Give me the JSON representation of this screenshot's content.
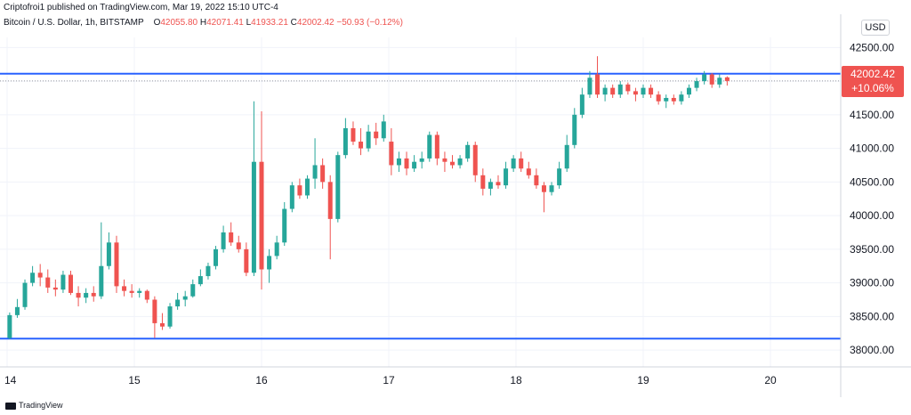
{
  "header": {
    "publish_text": "Criptofroi1 published on TradingView.com, Mar 19, 2022 15:10 UTC-4",
    "symbol": "Bitcoin / U.S. Dollar, 1h, BITSTAMP",
    "ohlc": {
      "o_label": "O",
      "o": "42055.80",
      "h_label": "H",
      "h": "42071.41",
      "l_label": "L",
      "l": "41933.21",
      "c_label": "C",
      "c": "42002.42",
      "change": "−50.93 (−0.12%)"
    }
  },
  "currency": "USD",
  "price_tag": {
    "price": "42002.42",
    "change_pct": "+10.06%"
  },
  "footer": {
    "logo_text": "TradingView"
  },
  "colors": {
    "up": "#26a69a",
    "down": "#ef5350",
    "level_line": "#2962ff",
    "grid": "#f0f3fa",
    "axis_text": "#131722"
  },
  "chart_data": {
    "type": "candlestick",
    "title": "Bitcoin / U.S. Dollar, 1h, BITSTAMP",
    "x_ticks": [
      "14",
      "15",
      "16",
      "17",
      "18",
      "19",
      "20"
    ],
    "y_ticks": [
      "38000.00",
      "38500.00",
      "39000.00",
      "39500.00",
      "40000.00",
      "40500.00",
      "41000.00",
      "41500.00",
      "42000.00",
      "42500.00"
    ],
    "y_values": [
      38000,
      38500,
      39000,
      39500,
      40000,
      40500,
      41000,
      41500,
      42000,
      42500
    ],
    "ylim": [
      37750,
      42650
    ],
    "xlim": [
      14.0,
      20.55
    ],
    "horizontal_levels": [
      42110,
      38170
    ],
    "last_price": 42002.42,
    "candles": [
      {
        "x": 14.02,
        "o": 38180,
        "h": 38560,
        "l": 38160,
        "c": 38520
      },
      {
        "x": 14.08,
        "o": 38520,
        "h": 38760,
        "l": 38480,
        "c": 38640
      },
      {
        "x": 14.14,
        "o": 38640,
        "h": 39050,
        "l": 38600,
        "c": 39000
      },
      {
        "x": 14.2,
        "o": 39000,
        "h": 39250,
        "l": 38950,
        "c": 39150
      },
      {
        "x": 14.26,
        "o": 39150,
        "h": 39280,
        "l": 38950,
        "c": 39080
      },
      {
        "x": 14.32,
        "o": 39080,
        "h": 39200,
        "l": 38850,
        "c": 38930
      },
      {
        "x": 14.38,
        "o": 38930,
        "h": 39050,
        "l": 38800,
        "c": 38900
      },
      {
        "x": 14.44,
        "o": 38900,
        "h": 39180,
        "l": 38850,
        "c": 39120
      },
      {
        "x": 14.5,
        "o": 39120,
        "h": 39180,
        "l": 38820,
        "c": 38850
      },
      {
        "x": 14.56,
        "o": 38850,
        "h": 38950,
        "l": 38650,
        "c": 38780
      },
      {
        "x": 14.62,
        "o": 38780,
        "h": 38920,
        "l": 38700,
        "c": 38850
      },
      {
        "x": 14.68,
        "o": 38850,
        "h": 38950,
        "l": 38720,
        "c": 38800
      },
      {
        "x": 14.74,
        "o": 38800,
        "h": 39900,
        "l": 38760,
        "c": 39250
      },
      {
        "x": 14.8,
        "o": 39250,
        "h": 39750,
        "l": 39200,
        "c": 39600
      },
      {
        "x": 14.86,
        "o": 39600,
        "h": 39700,
        "l": 38850,
        "c": 38950
      },
      {
        "x": 14.92,
        "o": 38950,
        "h": 39050,
        "l": 38800,
        "c": 38880
      },
      {
        "x": 14.98,
        "o": 38880,
        "h": 38980,
        "l": 38780,
        "c": 38850
      },
      {
        "x": 15.04,
        "o": 38850,
        "h": 38920,
        "l": 38780,
        "c": 38880
      },
      {
        "x": 15.1,
        "o": 38880,
        "h": 38900,
        "l": 38700,
        "c": 38750
      },
      {
        "x": 15.16,
        "o": 38750,
        "h": 38800,
        "l": 38180,
        "c": 38400
      },
      {
        "x": 15.22,
        "o": 38400,
        "h": 38550,
        "l": 38300,
        "c": 38350
      },
      {
        "x": 15.28,
        "o": 38350,
        "h": 38700,
        "l": 38320,
        "c": 38650
      },
      {
        "x": 15.34,
        "o": 38650,
        "h": 38850,
        "l": 38600,
        "c": 38750
      },
      {
        "x": 15.4,
        "o": 38750,
        "h": 38880,
        "l": 38650,
        "c": 38800
      },
      {
        "x": 15.46,
        "o": 38800,
        "h": 39050,
        "l": 38780,
        "c": 38980
      },
      {
        "x": 15.52,
        "o": 38980,
        "h": 39200,
        "l": 38950,
        "c": 39100
      },
      {
        "x": 15.58,
        "o": 39100,
        "h": 39300,
        "l": 39050,
        "c": 39250
      },
      {
        "x": 15.64,
        "o": 39250,
        "h": 39550,
        "l": 39200,
        "c": 39500
      },
      {
        "x": 15.7,
        "o": 39500,
        "h": 39850,
        "l": 39450,
        "c": 39750
      },
      {
        "x": 15.76,
        "o": 39750,
        "h": 39900,
        "l": 39550,
        "c": 39600
      },
      {
        "x": 15.82,
        "o": 39600,
        "h": 39700,
        "l": 39450,
        "c": 39500
      },
      {
        "x": 15.88,
        "o": 39500,
        "h": 39600,
        "l": 39100,
        "c": 39150
      },
      {
        "x": 15.94,
        "o": 39150,
        "h": 41700,
        "l": 39100,
        "c": 40800
      },
      {
        "x": 16.0,
        "o": 40800,
        "h": 41550,
        "l": 38900,
        "c": 39200
      },
      {
        "x": 16.06,
        "o": 39200,
        "h": 39500,
        "l": 39000,
        "c": 39400
      },
      {
        "x": 16.12,
        "o": 39400,
        "h": 39700,
        "l": 39350,
        "c": 39600
      },
      {
        "x": 16.18,
        "o": 39600,
        "h": 40200,
        "l": 39550,
        "c": 40100
      },
      {
        "x": 16.24,
        "o": 40100,
        "h": 40500,
        "l": 40050,
        "c": 40450
      },
      {
        "x": 16.3,
        "o": 40450,
        "h": 40550,
        "l": 40250,
        "c": 40300
      },
      {
        "x": 16.36,
        "o": 40300,
        "h": 40600,
        "l": 40250,
        "c": 40550
      },
      {
        "x": 16.42,
        "o": 40550,
        "h": 41150,
        "l": 40400,
        "c": 40750
      },
      {
        "x": 16.48,
        "o": 40750,
        "h": 40850,
        "l": 40400,
        "c": 40500
      },
      {
        "x": 16.54,
        "o": 40500,
        "h": 40600,
        "l": 39350,
        "c": 39950
      },
      {
        "x": 16.6,
        "o": 39950,
        "h": 40950,
        "l": 39900,
        "c": 40900
      },
      {
        "x": 16.66,
        "o": 40900,
        "h": 41450,
        "l": 40850,
        "c": 41300
      },
      {
        "x": 16.72,
        "o": 41300,
        "h": 41400,
        "l": 41050,
        "c": 41100
      },
      {
        "x": 16.78,
        "o": 41100,
        "h": 41300,
        "l": 40900,
        "c": 41000
      },
      {
        "x": 16.84,
        "o": 41000,
        "h": 41350,
        "l": 40950,
        "c": 41250
      },
      {
        "x": 16.9,
        "o": 41250,
        "h": 41380,
        "l": 41050,
        "c": 41150
      },
      {
        "x": 16.96,
        "o": 41150,
        "h": 41500,
        "l": 41100,
        "c": 41400
      },
      {
        "x": 17.02,
        "o": 41100,
        "h": 41300,
        "l": 40600,
        "c": 40750
      },
      {
        "x": 17.08,
        "o": 40750,
        "h": 40950,
        "l": 40650,
        "c": 40850
      },
      {
        "x": 17.14,
        "o": 40850,
        "h": 40950,
        "l": 40600,
        "c": 40700
      },
      {
        "x": 17.2,
        "o": 40700,
        "h": 40900,
        "l": 40650,
        "c": 40800
      },
      {
        "x": 17.26,
        "o": 40800,
        "h": 40950,
        "l": 40700,
        "c": 40850
      },
      {
        "x": 17.32,
        "o": 40850,
        "h": 41250,
        "l": 40800,
        "c": 41200
      },
      {
        "x": 17.38,
        "o": 41200,
        "h": 41250,
        "l": 40750,
        "c": 40850
      },
      {
        "x": 17.44,
        "o": 40850,
        "h": 40950,
        "l": 40650,
        "c": 40800
      },
      {
        "x": 17.5,
        "o": 40800,
        "h": 40900,
        "l": 40700,
        "c": 40750
      },
      {
        "x": 17.56,
        "o": 40750,
        "h": 40900,
        "l": 40700,
        "c": 40850
      },
      {
        "x": 17.62,
        "o": 40850,
        "h": 41100,
        "l": 40800,
        "c": 41050
      },
      {
        "x": 17.68,
        "o": 41050,
        "h": 41100,
        "l": 40500,
        "c": 40600
      },
      {
        "x": 17.74,
        "o": 40600,
        "h": 40700,
        "l": 40300,
        "c": 40400
      },
      {
        "x": 17.8,
        "o": 40400,
        "h": 40550,
        "l": 40300,
        "c": 40500
      },
      {
        "x": 17.86,
        "o": 40500,
        "h": 40600,
        "l": 40400,
        "c": 40450
      },
      {
        "x": 17.92,
        "o": 40450,
        "h": 40800,
        "l": 40400,
        "c": 40700
      },
      {
        "x": 17.98,
        "o": 40700,
        "h": 40900,
        "l": 40650,
        "c": 40850
      },
      {
        "x": 18.04,
        "o": 40850,
        "h": 40950,
        "l": 40650,
        "c": 40700
      },
      {
        "x": 18.1,
        "o": 40700,
        "h": 40800,
        "l": 40550,
        "c": 40600
      },
      {
        "x": 18.16,
        "o": 40600,
        "h": 40700,
        "l": 40400,
        "c": 40450
      },
      {
        "x": 18.22,
        "o": 40450,
        "h": 40500,
        "l": 40050,
        "c": 40350
      },
      {
        "x": 18.28,
        "o": 40350,
        "h": 40500,
        "l": 40300,
        "c": 40450
      },
      {
        "x": 18.34,
        "o": 40450,
        "h": 40800,
        "l": 40400,
        "c": 40700
      },
      {
        "x": 18.4,
        "o": 40700,
        "h": 41200,
        "l": 40650,
        "c": 41050
      },
      {
        "x": 18.46,
        "o": 41050,
        "h": 41600,
        "l": 41000,
        "c": 41500
      },
      {
        "x": 18.52,
        "o": 41500,
        "h": 41900,
        "l": 41450,
        "c": 41800
      },
      {
        "x": 18.58,
        "o": 41800,
        "h": 42150,
        "l": 41750,
        "c": 42050
      },
      {
        "x": 18.64,
        "o": 42100,
        "h": 42370,
        "l": 41750,
        "c": 41800
      },
      {
        "x": 18.7,
        "o": 41800,
        "h": 41950,
        "l": 41700,
        "c": 41900
      },
      {
        "x": 18.76,
        "o": 41900,
        "h": 41950,
        "l": 41750,
        "c": 41800
      },
      {
        "x": 18.82,
        "o": 41800,
        "h": 42000,
        "l": 41750,
        "c": 41950
      },
      {
        "x": 18.88,
        "o": 41950,
        "h": 41980,
        "l": 41800,
        "c": 41850
      },
      {
        "x": 18.94,
        "o": 41850,
        "h": 41900,
        "l": 41700,
        "c": 41800
      },
      {
        "x": 19.0,
        "o": 41800,
        "h": 41950,
        "l": 41750,
        "c": 41900
      },
      {
        "x": 19.06,
        "o": 41900,
        "h": 41950,
        "l": 41750,
        "c": 41800
      },
      {
        "x": 19.12,
        "o": 41800,
        "h": 41850,
        "l": 41650,
        "c": 41700
      },
      {
        "x": 19.18,
        "o": 41700,
        "h": 41800,
        "l": 41600,
        "c": 41750
      },
      {
        "x": 19.24,
        "o": 41750,
        "h": 41800,
        "l": 41650,
        "c": 41700
      },
      {
        "x": 19.3,
        "o": 41700,
        "h": 41850,
        "l": 41650,
        "c": 41800
      },
      {
        "x": 19.36,
        "o": 41800,
        "h": 41950,
        "l": 41750,
        "c": 41900
      },
      {
        "x": 19.42,
        "o": 41900,
        "h": 42050,
        "l": 41850,
        "c": 42000
      },
      {
        "x": 19.48,
        "o": 42000,
        "h": 42150,
        "l": 41950,
        "c": 42100
      },
      {
        "x": 19.54,
        "o": 42100,
        "h": 42120,
        "l": 41900,
        "c": 41950
      },
      {
        "x": 19.6,
        "o": 41950,
        "h": 42100,
        "l": 41900,
        "c": 42050
      },
      {
        "x": 19.66,
        "o": 42055.8,
        "h": 42071.41,
        "l": 41933.21,
        "c": 42002.42
      }
    ]
  }
}
